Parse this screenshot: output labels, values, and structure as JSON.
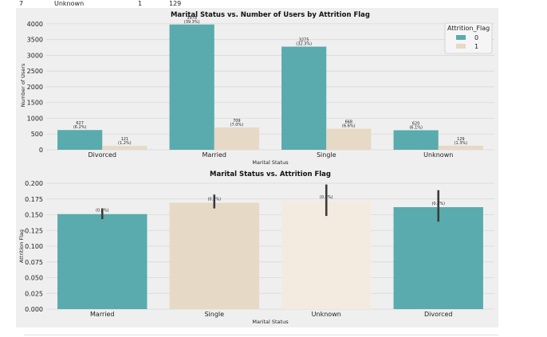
{
  "table_row": {
    "index": "7",
    "status": "Unknown",
    "flag": "1",
    "count": "129"
  },
  "chart_data": [
    {
      "type": "bar",
      "title": "Marital Status vs. Number of Users by Attrition Flag",
      "xlabel": "Marital Status",
      "ylabel": "Number of Users",
      "ylim": [
        0,
        4200
      ],
      "yticks": [
        0,
        500,
        1000,
        1500,
        2000,
        2500,
        3000,
        3500,
        4000
      ],
      "grid": true,
      "legend": {
        "title": "Attrition_Flag",
        "placement": "top-right"
      },
      "categories": [
        "Divorced",
        "Married",
        "Single",
        "Unknown"
      ],
      "series": [
        {
          "name": "0",
          "color": "#5aabad",
          "values": [
            627,
            3978,
            3275,
            620
          ],
          "labels": [
            [
              "627",
              "(6.2%)"
            ],
            [
              "3978",
              "(39.3%)"
            ],
            [
              "3275",
              "(32.3%)"
            ],
            [
              "620",
              "(6.1%)"
            ]
          ]
        },
        {
          "name": "1",
          "color": "#e6d9c6",
          "values": [
            121,
            709,
            668,
            129
          ],
          "labels": [
            [
              "121",
              "(1.2%)"
            ],
            [
              "709",
              "(7.0%)"
            ],
            [
              "668",
              "(6.6%)"
            ],
            [
              "129",
              "(1.3%)"
            ]
          ]
        }
      ]
    },
    {
      "type": "bar",
      "title": "Marital Status vs. Attrition Flag",
      "xlabel": "Marital Status",
      "ylabel": "Attrition Flag",
      "ylim": [
        0,
        0.2
      ],
      "yticks": [
        "0.000",
        "0.025",
        "0.050",
        "0.075",
        "0.100",
        "0.125",
        "0.150",
        "0.175",
        "0.200"
      ],
      "grid": true,
      "categories": [
        "Married",
        "Single",
        "Unknown",
        "Divorced"
      ],
      "values": [
        0.151,
        0.169,
        0.172,
        0.162
      ],
      "error_low": [
        0.143,
        0.16,
        0.148,
        0.139
      ],
      "error_high": [
        0.16,
        0.182,
        0.198,
        0.189
      ],
      "colors": [
        "#5aabad",
        "#e6d9c6",
        "#f3ebdf",
        "#5aabad"
      ],
      "labels": [
        "(0.2%)",
        "(0.2%)",
        "(0.2%)",
        "(0.2%)"
      ]
    }
  ]
}
